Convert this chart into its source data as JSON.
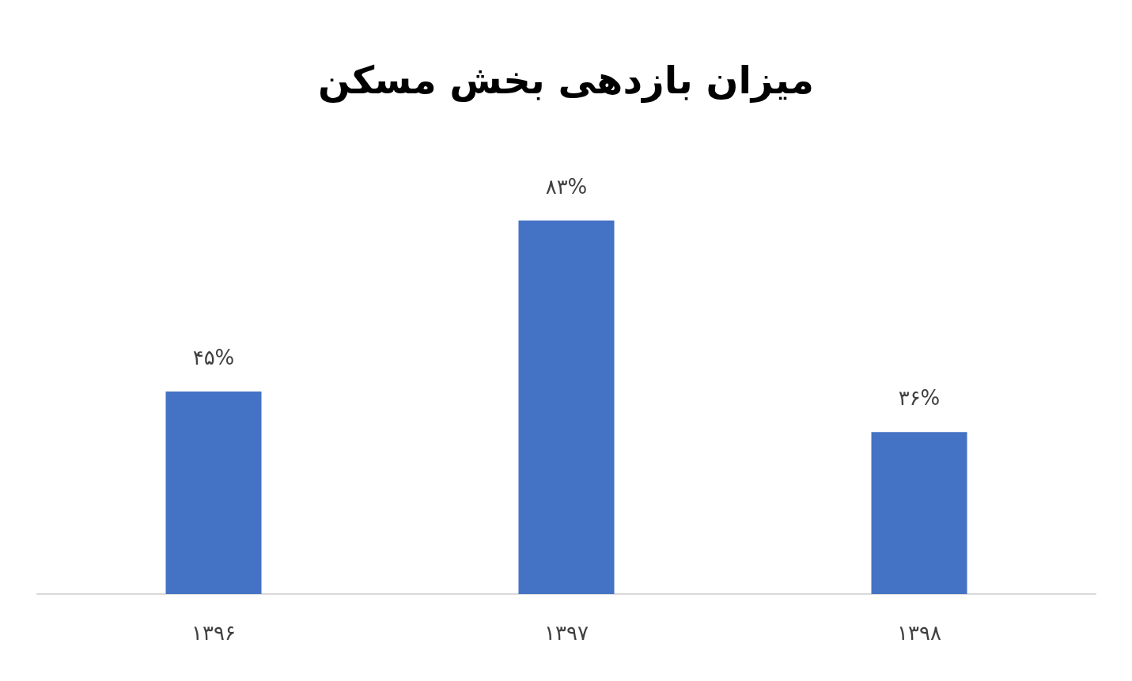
{
  "chart_data": {
    "type": "bar",
    "title": "میزان بازدهی بخش مسکن",
    "categories": [
      "۱۳۹۶",
      "۱۳۹۷",
      "۱۳۹۸"
    ],
    "values": [
      45,
      83,
      36
    ],
    "value_labels": [
      "۴۵%",
      "۸۳%",
      "۳۶%"
    ],
    "color": "#4472c4",
    "grid": false
  }
}
